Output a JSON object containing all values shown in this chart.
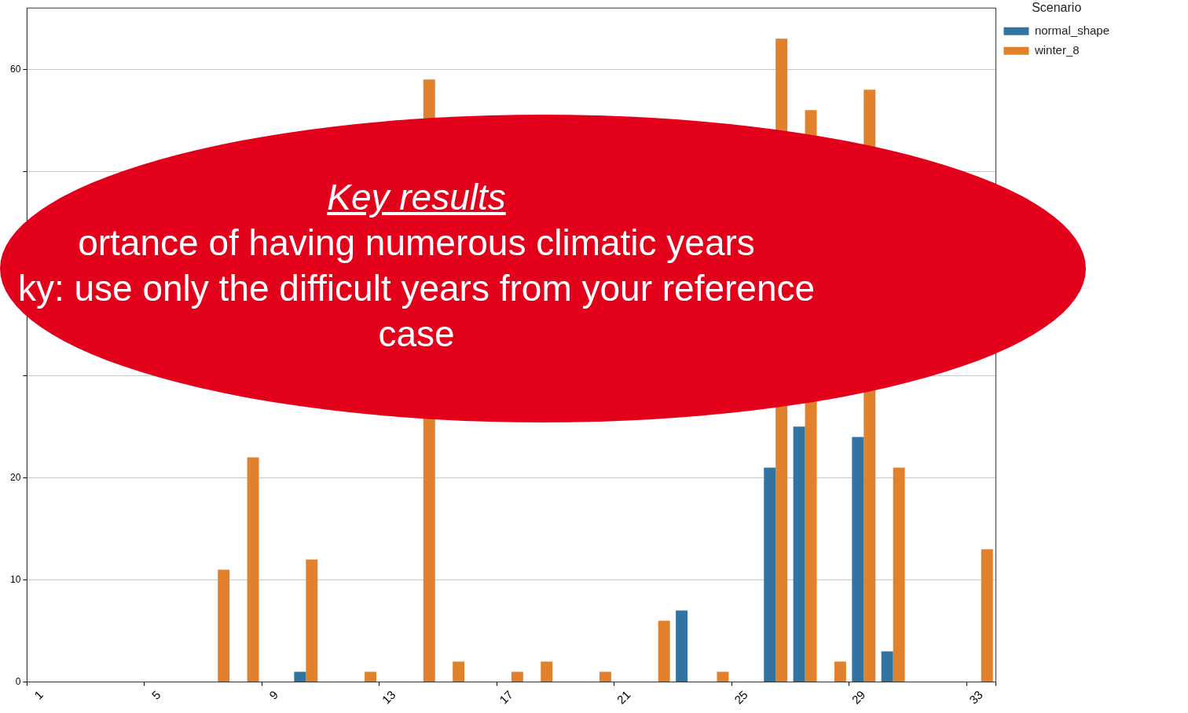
{
  "chart_data": {
    "type": "bar",
    "categories": [
      "1",
      null,
      null,
      null,
      "5",
      null,
      null,
      null,
      "9",
      null,
      null,
      null,
      "13",
      null,
      null,
      null,
      "17",
      null,
      null,
      null,
      "21",
      null,
      null,
      null,
      "25",
      null,
      null,
      null,
      "29",
      null,
      null,
      null,
      "33"
    ],
    "series": [
      {
        "name": "normal_shape",
        "color": "#3274a1",
        "values": [
          0,
          0,
          0,
          0,
          0,
          0,
          0,
          0,
          0,
          1,
          0,
          0,
          0,
          null,
          0,
          0,
          0,
          0,
          0,
          0,
          0,
          0,
          7,
          0,
          0,
          21,
          25,
          0,
          24,
          3,
          0,
          0,
          0
        ]
      },
      {
        "name": "winter_8",
        "color": "#e1812c",
        "values": [
          0,
          0,
          0,
          null,
          0,
          0,
          11,
          22,
          null,
          12,
          0,
          1,
          0,
          59,
          2,
          0,
          1,
          2,
          0,
          1,
          null,
          6,
          null,
          1,
          0,
          63,
          56,
          2,
          58,
          21,
          0,
          0,
          13
        ]
      }
    ],
    "ylim": [
      0,
      66
    ],
    "yticks": [
      0,
      10,
      20,
      {
        "value": 30,
        "label": null
      },
      {
        "value": 40,
        "label": null
      },
      {
        "value": 50,
        "label": null
      },
      60
    ],
    "grid": "y",
    "legend": "top right",
    "legend_title": "Scenario",
    "annotations": [
      "Key results",
      "ortance of having numerous climatic years",
      "ky: use only the difficult years from your reference case"
    ]
  }
}
